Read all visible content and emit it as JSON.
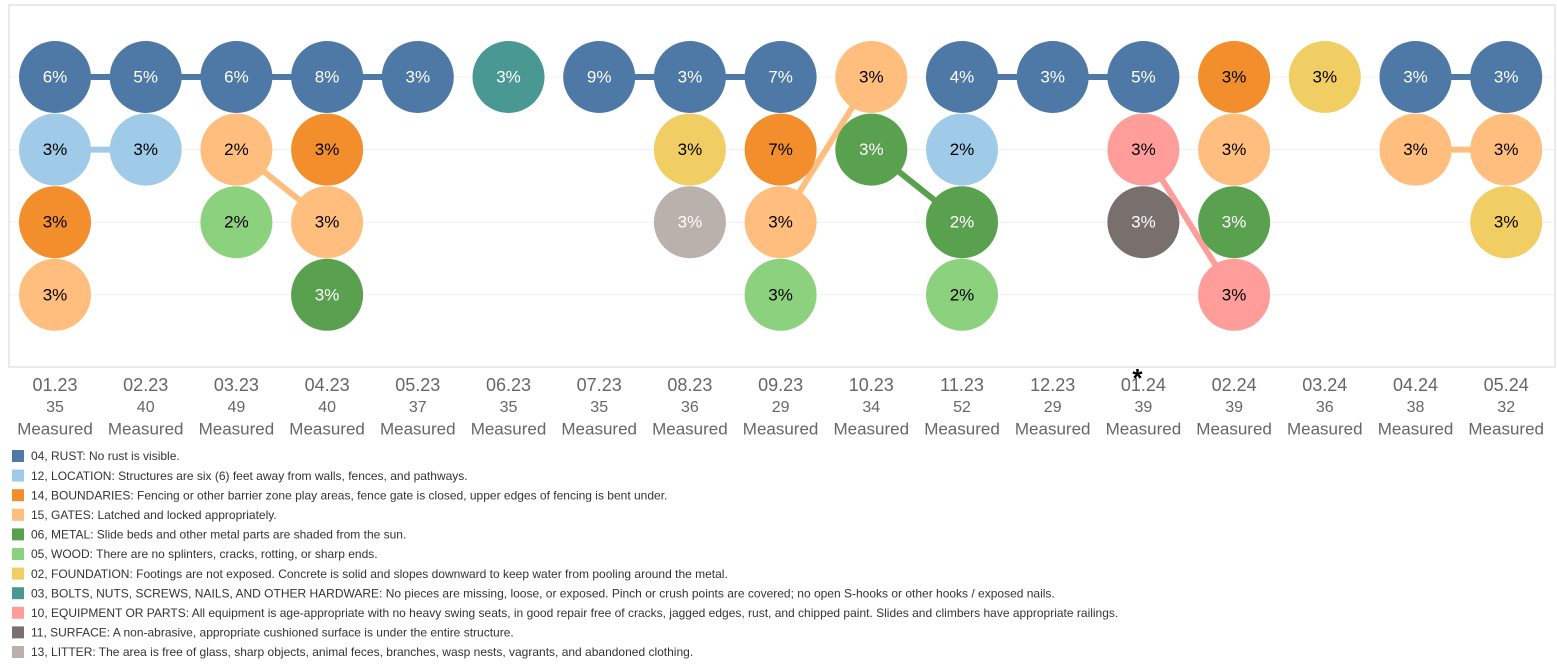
{
  "chart_data": {
    "type": "bump",
    "sublabel": "Measured",
    "annotation": "*",
    "annotation_column": 12,
    "grid": true,
    "series": [
      {
        "name": "04, RUST: No rust is visible.",
        "color": "#4e79a7",
        "label_color": "#ffffff"
      },
      {
        "name": "12, LOCATION: Structures are six (6) feet away from walls, fences, and pathways.",
        "color": "#a0cbe8",
        "label_color": "#000000"
      },
      {
        "name": "14, BOUNDARIES: Fencing or other barrier zone play areas, fence gate is closed, upper edges of fencing is bent under.",
        "color": "#f28e2b",
        "label_color": "#000000"
      },
      {
        "name": "15, GATES: Latched and locked appropriately.",
        "color": "#ffbe7d",
        "label_color": "#000000"
      },
      {
        "name": "06, METAL: Slide beds and other metal parts are shaded from the sun.",
        "color": "#59a14f",
        "label_color": "#ffffff"
      },
      {
        "name": "05, WOOD: There are no splinters, cracks, rotting, or sharp ends.",
        "color": "#8cd17d",
        "label_color": "#000000"
      },
      {
        "name": "02, FOUNDATION: Footings are not exposed. Concrete is solid and slopes downward to keep water from pooling around the metal.",
        "color": "#f1ce63",
        "label_color": "#000000"
      },
      {
        "name": "03, BOLTS, NUTS, SCREWS, NAILS, AND OTHER HARDWARE: No pieces are missing, loose, or exposed. Pinch or crush points are covered; no open S-hooks or other hooks / exposed nails.",
        "color": "#499894",
        "label_color": "#ffffff"
      },
      {
        "name": "10, EQUIPMENT OR PARTS: All equipment is age-appropriate with no heavy swing seats, in good repair free of cracks, jagged edges, rust, and chipped paint.  Slides and climbers have appropriate railings.",
        "color": "#ff9d9a",
        "label_color": "#000000"
      },
      {
        "name": "11, SURFACE: A non-abrasive, appropriate cushioned surface is under the entire structure.",
        "color": "#79706e",
        "label_color": "#ffffff"
      },
      {
        "name": "13, LITTER: The area is free of glass, sharp objects, animal feces, branches, wasp nests, vagrants, and abandoned clothing.",
        "color": "#bab0ac",
        "label_color": "#ffffff"
      }
    ],
    "columns": [
      {
        "label": "01.23",
        "count": 35,
        "points": [
          {
            "series": 0,
            "value": 6,
            "value_label": "6%"
          },
          {
            "series": 1,
            "value": 3,
            "value_label": "3%"
          },
          {
            "series": 2,
            "value": 3,
            "value_label": "3%"
          },
          {
            "series": 3,
            "value": 3,
            "value_label": "3%"
          }
        ]
      },
      {
        "label": "02.23",
        "count": 40,
        "points": [
          {
            "series": 0,
            "value": 5,
            "value_label": "5%"
          },
          {
            "series": 1,
            "value": 3,
            "value_label": "3%"
          }
        ]
      },
      {
        "label": "03.23",
        "count": 49,
        "points": [
          {
            "series": 0,
            "value": 6,
            "value_label": "6%"
          },
          {
            "series": 3,
            "value": 2,
            "value_label": "2%"
          },
          {
            "series": 5,
            "value": 2,
            "value_label": "2%"
          }
        ]
      },
      {
        "label": "04.23",
        "count": 40,
        "points": [
          {
            "series": 0,
            "value": 8,
            "value_label": "8%"
          },
          {
            "series": 2,
            "value": 3,
            "value_label": "3%"
          },
          {
            "series": 3,
            "value": 3,
            "value_label": "3%"
          },
          {
            "series": 4,
            "value": 3,
            "value_label": "3%"
          }
        ]
      },
      {
        "label": "05.23",
        "count": 37,
        "points": [
          {
            "series": 0,
            "value": 3,
            "value_label": "3%"
          }
        ]
      },
      {
        "label": "06.23",
        "count": 35,
        "points": [
          {
            "series": 7,
            "value": 3,
            "value_label": "3%"
          }
        ]
      },
      {
        "label": "07.23",
        "count": 35,
        "points": [
          {
            "series": 0,
            "value": 9,
            "value_label": "9%"
          }
        ]
      },
      {
        "label": "08.23",
        "count": 36,
        "points": [
          {
            "series": 0,
            "value": 3,
            "value_label": "3%"
          },
          {
            "series": 6,
            "value": 3,
            "value_label": "3%"
          },
          {
            "series": 10,
            "value": 3,
            "value_label": "3%"
          }
        ]
      },
      {
        "label": "09.23",
        "count": 29,
        "points": [
          {
            "series": 0,
            "value": 7,
            "value_label": "7%"
          },
          {
            "series": 2,
            "value": 7,
            "value_label": "7%"
          },
          {
            "series": 3,
            "value": 3,
            "value_label": "3%"
          },
          {
            "series": 5,
            "value": 3,
            "value_label": "3%"
          }
        ]
      },
      {
        "label": "10.23",
        "count": 34,
        "points": [
          {
            "series": 3,
            "value": 3,
            "value_label": "3%"
          },
          {
            "series": 4,
            "value": 3,
            "value_label": "3%"
          }
        ]
      },
      {
        "label": "11.23",
        "count": 52,
        "points": [
          {
            "series": 0,
            "value": 4,
            "value_label": "4%"
          },
          {
            "series": 1,
            "value": 2,
            "value_label": "2%"
          },
          {
            "series": 4,
            "value": 2,
            "value_label": "2%"
          },
          {
            "series": 5,
            "value": 2,
            "value_label": "2%"
          }
        ]
      },
      {
        "label": "12.23",
        "count": 29,
        "points": [
          {
            "series": 0,
            "value": 3,
            "value_label": "3%"
          }
        ]
      },
      {
        "label": "01.24",
        "count": 39,
        "points": [
          {
            "series": 0,
            "value": 5,
            "value_label": "5%"
          },
          {
            "series": 8,
            "value": 3,
            "value_label": "3%"
          },
          {
            "series": 9,
            "value": 3,
            "value_label": "3%"
          }
        ]
      },
      {
        "label": "02.24",
        "count": 39,
        "points": [
          {
            "series": 2,
            "value": 3,
            "value_label": "3%"
          },
          {
            "series": 3,
            "value": 3,
            "value_label": "3%"
          },
          {
            "series": 4,
            "value": 3,
            "value_label": "3%"
          },
          {
            "series": 8,
            "value": 3,
            "value_label": "3%"
          }
        ]
      },
      {
        "label": "03.24",
        "count": 36,
        "points": [
          {
            "series": 6,
            "value": 3,
            "value_label": "3%"
          }
        ]
      },
      {
        "label": "04.24",
        "count": 38,
        "points": [
          {
            "series": 0,
            "value": 3,
            "value_label": "3%"
          },
          {
            "series": 3,
            "value": 3,
            "value_label": "3%"
          }
        ]
      },
      {
        "label": "05.24",
        "count": 32,
        "points": [
          {
            "series": 0,
            "value": 3,
            "value_label": "3%"
          },
          {
            "series": 3,
            "value": 3,
            "value_label": "3%"
          },
          {
            "series": 6,
            "value": 3,
            "value_label": "3%"
          }
        ]
      }
    ]
  }
}
